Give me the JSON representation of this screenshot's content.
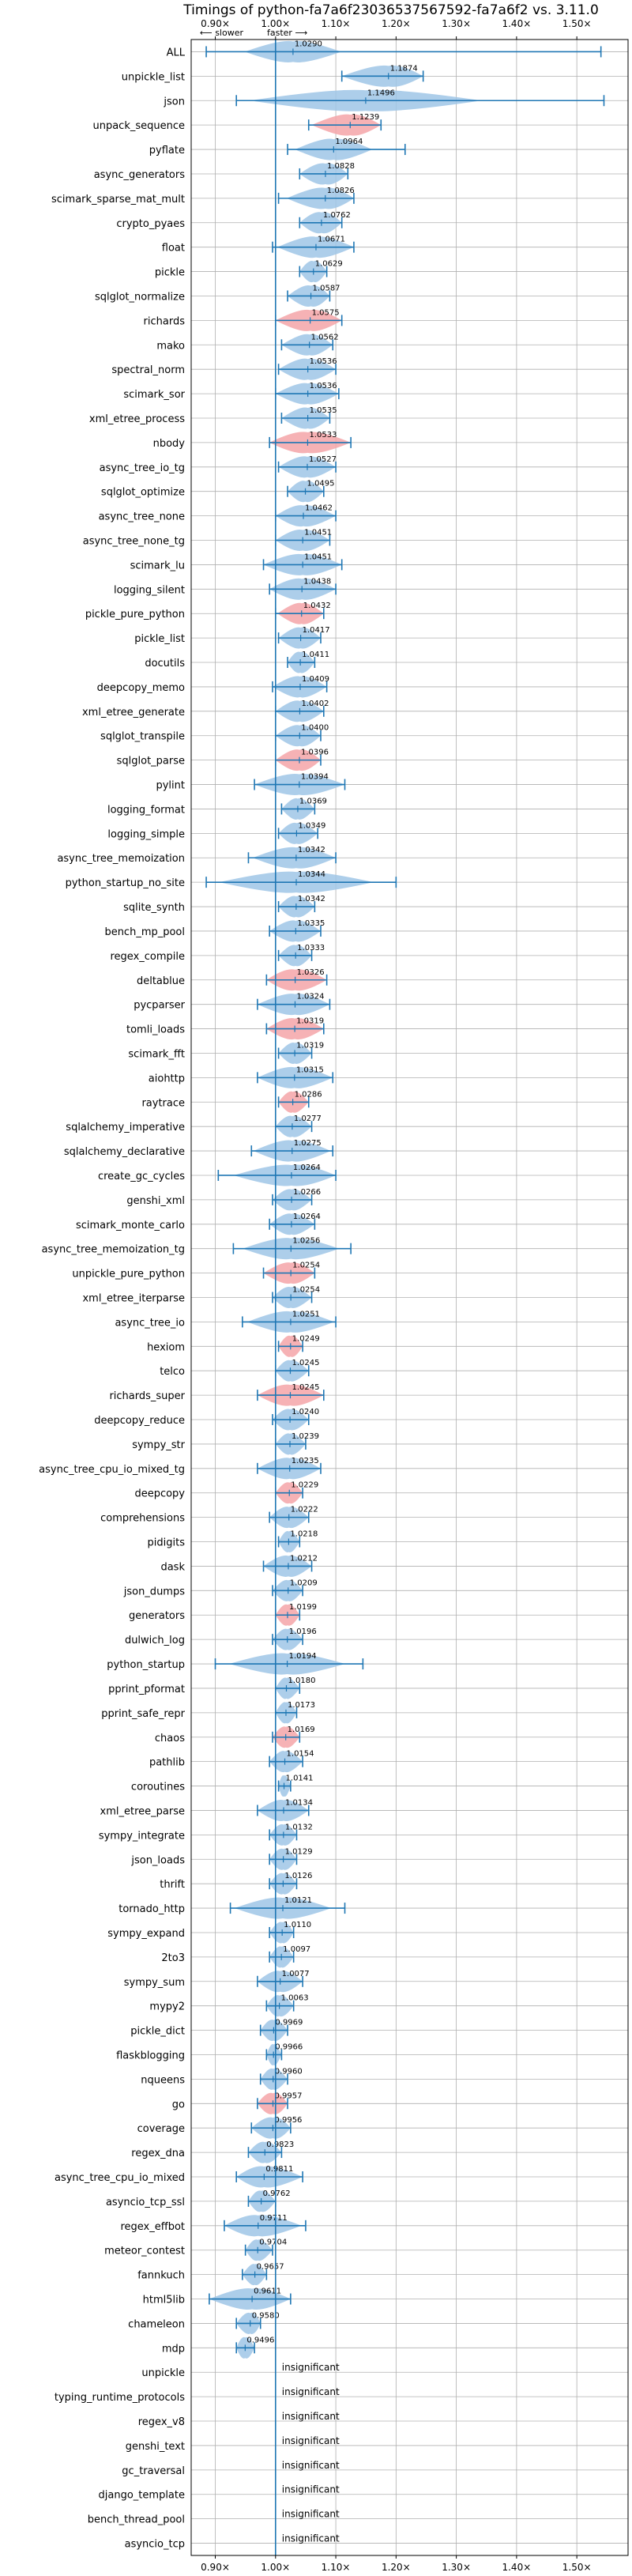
{
  "chart_data": {
    "type": "violin",
    "title": "Timings of python-fa7a6f23036537567592-fa7a6f2 vs. 3.11.0",
    "direction_labels": {
      "slower": "⟵ slower",
      "faster": "faster ⟶"
    },
    "xlim": [
      0.86,
      1.585
    ],
    "xticks": [
      0.9,
      1.0,
      1.1,
      1.2,
      1.3,
      1.4,
      1.5
    ],
    "xtick_labels": [
      "0.90×",
      "1.00×",
      "1.10×",
      "1.20×",
      "1.30×",
      "1.40×",
      "1.50×"
    ],
    "insignificant_label": "insignificant",
    "colors": {
      "neutral": "#9fc6e6",
      "highlight": "#f4a4a8",
      "whisker": "#1f77b4",
      "grid": "#b0b0b0"
    },
    "benchmarks": [
      {
        "name": "ALL",
        "value": 1.029,
        "min": 0.885,
        "max": 1.54,
        "spread": 0.05,
        "highlight": false
      },
      {
        "name": "unpickle_list",
        "value": 1.1874,
        "min": 1.11,
        "max": 1.245,
        "spread": 0.05,
        "highlight": false
      },
      {
        "name": "json",
        "value": 1.1496,
        "min": 0.935,
        "max": 1.545,
        "spread": 0.12,
        "highlight": false
      },
      {
        "name": "unpack_sequence",
        "value": 1.1239,
        "min": 1.055,
        "max": 1.175,
        "spread": 0.04,
        "highlight": true
      },
      {
        "name": "pyflate",
        "value": 1.0964,
        "min": 1.02,
        "max": 1.215,
        "spread": 0.04,
        "highlight": false
      },
      {
        "name": "async_generators",
        "value": 1.0828,
        "min": 1.04,
        "max": 1.12,
        "spread": 0.035,
        "highlight": false
      },
      {
        "name": "scimark_sparse_mat_mult",
        "value": 1.0826,
        "min": 1.005,
        "max": 1.13,
        "spread": 0.04,
        "highlight": false
      },
      {
        "name": "crypto_pyaes",
        "value": 1.0762,
        "min": 1.04,
        "max": 1.11,
        "spread": 0.03,
        "highlight": false
      },
      {
        "name": "float",
        "value": 1.0671,
        "min": 0.995,
        "max": 1.13,
        "spread": 0.04,
        "highlight": false
      },
      {
        "name": "pickle",
        "value": 1.0629,
        "min": 1.04,
        "max": 1.085,
        "spread": 0.02,
        "highlight": false
      },
      {
        "name": "sqlglot_normalize",
        "value": 1.0587,
        "min": 1.02,
        "max": 1.09,
        "spread": 0.03,
        "highlight": false
      },
      {
        "name": "richards",
        "value": 1.0575,
        "min": 1.0,
        "max": 1.11,
        "spread": 0.04,
        "highlight": true
      },
      {
        "name": "mako",
        "value": 1.0562,
        "min": 1.01,
        "max": 1.095,
        "spread": 0.03,
        "highlight": false
      },
      {
        "name": "spectral_norm",
        "value": 1.0536,
        "min": 1.005,
        "max": 1.1,
        "spread": 0.035,
        "highlight": false
      },
      {
        "name": "scimark_sor",
        "value": 1.0536,
        "min": 1.0,
        "max": 1.105,
        "spread": 0.035,
        "highlight": false
      },
      {
        "name": "xml_etree_process",
        "value": 1.0535,
        "min": 1.01,
        "max": 1.09,
        "spread": 0.03,
        "highlight": false
      },
      {
        "name": "nbody",
        "value": 1.0533,
        "min": 0.99,
        "max": 1.125,
        "spread": 0.05,
        "highlight": true
      },
      {
        "name": "async_tree_io_tg",
        "value": 1.0527,
        "min": 1.005,
        "max": 1.1,
        "spread": 0.035,
        "highlight": false
      },
      {
        "name": "sqlglot_optimize",
        "value": 1.0495,
        "min": 1.02,
        "max": 1.08,
        "spread": 0.025,
        "highlight": false
      },
      {
        "name": "async_tree_none",
        "value": 1.0462,
        "min": 1.0,
        "max": 1.1,
        "spread": 0.035,
        "highlight": false
      },
      {
        "name": "async_tree_none_tg",
        "value": 1.0451,
        "min": 1.0,
        "max": 1.09,
        "spread": 0.035,
        "highlight": false
      },
      {
        "name": "scimark_lu",
        "value": 1.0451,
        "min": 0.98,
        "max": 1.11,
        "spread": 0.045,
        "highlight": false
      },
      {
        "name": "logging_silent",
        "value": 1.0438,
        "min": 0.99,
        "max": 1.1,
        "spread": 0.04,
        "highlight": false
      },
      {
        "name": "pickle_pure_python",
        "value": 1.0432,
        "min": 1.0,
        "max": 1.08,
        "spread": 0.025,
        "highlight": true
      },
      {
        "name": "pickle_list",
        "value": 1.0417,
        "min": 1.005,
        "max": 1.075,
        "spread": 0.025,
        "highlight": false
      },
      {
        "name": "docutils",
        "value": 1.0411,
        "min": 1.02,
        "max": 1.065,
        "spread": 0.02,
        "highlight": false
      },
      {
        "name": "deepcopy_memo",
        "value": 1.0409,
        "min": 0.995,
        "max": 1.085,
        "spread": 0.03,
        "highlight": false
      },
      {
        "name": "xml_etree_generate",
        "value": 1.0402,
        "min": 1.0,
        "max": 1.08,
        "spread": 0.03,
        "highlight": false
      },
      {
        "name": "sqlglot_transpile",
        "value": 1.04,
        "min": 1.0,
        "max": 1.075,
        "spread": 0.03,
        "highlight": false
      },
      {
        "name": "sqlglot_parse",
        "value": 1.0396,
        "min": 1.0,
        "max": 1.075,
        "spread": 0.03,
        "highlight": true
      },
      {
        "name": "pylint",
        "value": 1.0394,
        "min": 0.965,
        "max": 1.115,
        "spread": 0.05,
        "highlight": false
      },
      {
        "name": "logging_format",
        "value": 1.0369,
        "min": 1.01,
        "max": 1.065,
        "spread": 0.02,
        "highlight": false
      },
      {
        "name": "logging_simple",
        "value": 1.0349,
        "min": 1.005,
        "max": 1.07,
        "spread": 0.025,
        "highlight": false
      },
      {
        "name": "async_tree_memoization",
        "value": 1.0342,
        "min": 0.955,
        "max": 1.1,
        "spread": 0.045,
        "highlight": false
      },
      {
        "name": "python_startup_no_site",
        "value": 1.0344,
        "min": 0.885,
        "max": 1.2,
        "spread": 0.08,
        "highlight": false
      },
      {
        "name": "sqlite_synth",
        "value": 1.0342,
        "min": 1.005,
        "max": 1.065,
        "spread": 0.025,
        "highlight": false
      },
      {
        "name": "bench_mp_pool",
        "value": 1.0335,
        "min": 0.99,
        "max": 1.075,
        "spread": 0.03,
        "highlight": false
      },
      {
        "name": "regex_compile",
        "value": 1.0333,
        "min": 1.005,
        "max": 1.06,
        "spread": 0.02,
        "highlight": false
      },
      {
        "name": "deltablue",
        "value": 1.0326,
        "min": 0.985,
        "max": 1.085,
        "spread": 0.04,
        "highlight": true
      },
      {
        "name": "pycparser",
        "value": 1.0324,
        "min": 0.97,
        "max": 1.09,
        "spread": 0.04,
        "highlight": false
      },
      {
        "name": "tomli_loads",
        "value": 1.0319,
        "min": 0.985,
        "max": 1.08,
        "spread": 0.035,
        "highlight": true
      },
      {
        "name": "scimark_fft",
        "value": 1.0319,
        "min": 1.005,
        "max": 1.06,
        "spread": 0.02,
        "highlight": false
      },
      {
        "name": "aiohttp",
        "value": 1.0315,
        "min": 0.97,
        "max": 1.095,
        "spread": 0.04,
        "highlight": false
      },
      {
        "name": "raytrace",
        "value": 1.0286,
        "min": 1.005,
        "max": 1.055,
        "spread": 0.02,
        "highlight": true
      },
      {
        "name": "sqlalchemy_imperative",
        "value": 1.0277,
        "min": 1.0,
        "max": 1.06,
        "spread": 0.025,
        "highlight": false
      },
      {
        "name": "sqlalchemy_declarative",
        "value": 1.0275,
        "min": 0.96,
        "max": 1.095,
        "spread": 0.04,
        "highlight": false
      },
      {
        "name": "create_gc_cycles",
        "value": 1.0264,
        "min": 0.905,
        "max": 1.1,
        "spread": 0.06,
        "highlight": false
      },
      {
        "name": "genshi_xml",
        "value": 1.0266,
        "min": 0.995,
        "max": 1.06,
        "spread": 0.025,
        "highlight": false
      },
      {
        "name": "scimark_monte_carlo",
        "value": 1.0264,
        "min": 0.99,
        "max": 1.065,
        "spread": 0.025,
        "highlight": false
      },
      {
        "name": "async_tree_memoization_tg",
        "value": 1.0256,
        "min": 0.93,
        "max": 1.125,
        "spread": 0.05,
        "highlight": false
      },
      {
        "name": "unpickle_pure_python",
        "value": 1.0254,
        "min": 0.98,
        "max": 1.065,
        "spread": 0.03,
        "highlight": true
      },
      {
        "name": "xml_etree_iterparse",
        "value": 1.0254,
        "min": 0.995,
        "max": 1.06,
        "spread": 0.025,
        "highlight": false
      },
      {
        "name": "async_tree_io",
        "value": 1.0251,
        "min": 0.945,
        "max": 1.1,
        "spread": 0.045,
        "highlight": false
      },
      {
        "name": "hexiom",
        "value": 1.0249,
        "min": 1.005,
        "max": 1.045,
        "spread": 0.018,
        "highlight": true
      },
      {
        "name": "telco",
        "value": 1.0245,
        "min": 1.0,
        "max": 1.055,
        "spread": 0.02,
        "highlight": false
      },
      {
        "name": "richards_super",
        "value": 1.0245,
        "min": 0.97,
        "max": 1.08,
        "spread": 0.04,
        "highlight": true
      },
      {
        "name": "deepcopy_reduce",
        "value": 1.024,
        "min": 0.995,
        "max": 1.055,
        "spread": 0.025,
        "highlight": false
      },
      {
        "name": "sympy_str",
        "value": 1.0239,
        "min": 1.0,
        "max": 1.05,
        "spread": 0.02,
        "highlight": false
      },
      {
        "name": "async_tree_cpu_io_mixed_tg",
        "value": 1.0235,
        "min": 0.97,
        "max": 1.075,
        "spread": 0.035,
        "highlight": false
      },
      {
        "name": "deepcopy",
        "value": 1.0229,
        "min": 1.0,
        "max": 1.045,
        "spread": 0.02,
        "highlight": true
      },
      {
        "name": "comprehensions",
        "value": 1.0222,
        "min": 0.99,
        "max": 1.055,
        "spread": 0.025,
        "highlight": false
      },
      {
        "name": "pidigits",
        "value": 1.0218,
        "min": 1.005,
        "max": 1.04,
        "spread": 0.015,
        "highlight": false
      },
      {
        "name": "dask",
        "value": 1.0212,
        "min": 0.98,
        "max": 1.06,
        "spread": 0.03,
        "highlight": false
      },
      {
        "name": "json_dumps",
        "value": 1.0209,
        "min": 0.995,
        "max": 1.045,
        "spread": 0.02,
        "highlight": false
      },
      {
        "name": "generators",
        "value": 1.0199,
        "min": 1.0,
        "max": 1.04,
        "spread": 0.018,
        "highlight": true
      },
      {
        "name": "dulwich_log",
        "value": 1.0196,
        "min": 0.995,
        "max": 1.045,
        "spread": 0.02,
        "highlight": false
      },
      {
        "name": "python_startup",
        "value": 1.0194,
        "min": 0.9,
        "max": 1.145,
        "spread": 0.06,
        "highlight": false
      },
      {
        "name": "pprint_pformat",
        "value": 1.018,
        "min": 1.0,
        "max": 1.04,
        "spread": 0.015,
        "highlight": false
      },
      {
        "name": "pprint_safe_repr",
        "value": 1.0173,
        "min": 1.0,
        "max": 1.035,
        "spread": 0.015,
        "highlight": false
      },
      {
        "name": "chaos",
        "value": 1.0169,
        "min": 0.995,
        "max": 1.04,
        "spread": 0.018,
        "highlight": true
      },
      {
        "name": "pathlib",
        "value": 1.0154,
        "min": 0.99,
        "max": 1.045,
        "spread": 0.02,
        "highlight": false
      },
      {
        "name": "coroutines",
        "value": 1.0141,
        "min": 1.005,
        "max": 1.025,
        "spread": 0.01,
        "highlight": false
      },
      {
        "name": "xml_etree_parse",
        "value": 1.0134,
        "min": 0.97,
        "max": 1.055,
        "spread": 0.03,
        "highlight": false
      },
      {
        "name": "sympy_integrate",
        "value": 1.0132,
        "min": 0.99,
        "max": 1.035,
        "spread": 0.02,
        "highlight": false
      },
      {
        "name": "json_loads",
        "value": 1.0129,
        "min": 0.99,
        "max": 1.035,
        "spread": 0.02,
        "highlight": false
      },
      {
        "name": "thrift",
        "value": 1.0126,
        "min": 0.99,
        "max": 1.035,
        "spread": 0.02,
        "highlight": false
      },
      {
        "name": "tornado_http",
        "value": 1.0121,
        "min": 0.925,
        "max": 1.115,
        "spread": 0.05,
        "highlight": false
      },
      {
        "name": "sympy_expand",
        "value": 1.011,
        "min": 0.99,
        "max": 1.03,
        "spread": 0.018,
        "highlight": false
      },
      {
        "name": "2to3",
        "value": 1.0097,
        "min": 0.99,
        "max": 1.03,
        "spread": 0.015,
        "highlight": false
      },
      {
        "name": "sympy_sum",
        "value": 1.0077,
        "min": 0.97,
        "max": 1.045,
        "spread": 0.03,
        "highlight": false
      },
      {
        "name": "mypy2",
        "value": 1.0063,
        "min": 0.985,
        "max": 1.03,
        "spread": 0.02,
        "highlight": false
      },
      {
        "name": "pickle_dict",
        "value": 0.9969,
        "min": 0.975,
        "max": 1.02,
        "spread": 0.02,
        "highlight": false
      },
      {
        "name": "flaskblogging",
        "value": 0.9966,
        "min": 0.985,
        "max": 1.01,
        "spread": 0.01,
        "highlight": false
      },
      {
        "name": "nqueens",
        "value": 0.996,
        "min": 0.975,
        "max": 1.02,
        "spread": 0.018,
        "highlight": false
      },
      {
        "name": "go",
        "value": 0.9957,
        "min": 0.97,
        "max": 1.02,
        "spread": 0.025,
        "highlight": true
      },
      {
        "name": "coverage",
        "value": 0.9956,
        "min": 0.96,
        "max": 1.025,
        "spread": 0.03,
        "highlight": false
      },
      {
        "name": "regex_dna",
        "value": 0.9823,
        "min": 0.955,
        "max": 1.01,
        "spread": 0.025,
        "highlight": false
      },
      {
        "name": "async_tree_cpu_io_mixed",
        "value": 0.9811,
        "min": 0.935,
        "max": 1.045,
        "spread": 0.04,
        "highlight": false
      },
      {
        "name": "asyncio_tcp_ssl",
        "value": 0.9762,
        "min": 0.955,
        "max": 1.0,
        "spread": 0.02,
        "highlight": false
      },
      {
        "name": "regex_effbot",
        "value": 0.9711,
        "min": 0.915,
        "max": 1.05,
        "spread": 0.045,
        "highlight": false
      },
      {
        "name": "meteor_contest",
        "value": 0.9704,
        "min": 0.95,
        "max": 0.995,
        "spread": 0.018,
        "highlight": false
      },
      {
        "name": "fannkuch",
        "value": 0.9657,
        "min": 0.945,
        "max": 0.985,
        "spread": 0.015,
        "highlight": false
      },
      {
        "name": "html5lib",
        "value": 0.9611,
        "min": 0.89,
        "max": 1.025,
        "spread": 0.045,
        "highlight": false
      },
      {
        "name": "chameleon",
        "value": 0.958,
        "min": 0.935,
        "max": 0.975,
        "spread": 0.02,
        "highlight": false
      },
      {
        "name": "mdp",
        "value": 0.9496,
        "min": 0.935,
        "max": 0.965,
        "spread": 0.015,
        "highlight": false
      },
      {
        "name": "unpickle",
        "value": null,
        "min": null,
        "max": null,
        "spread": 0,
        "highlight": false
      },
      {
        "name": "typing_runtime_protocols",
        "value": null,
        "min": null,
        "max": null,
        "spread": 0,
        "highlight": false
      },
      {
        "name": "regex_v8",
        "value": null,
        "min": null,
        "max": null,
        "spread": 0,
        "highlight": false
      },
      {
        "name": "genshi_text",
        "value": null,
        "min": null,
        "max": null,
        "spread": 0,
        "highlight": false
      },
      {
        "name": "gc_traversal",
        "value": null,
        "min": null,
        "max": null,
        "spread": 0,
        "highlight": false
      },
      {
        "name": "django_template",
        "value": null,
        "min": null,
        "max": null,
        "spread": 0,
        "highlight": false
      },
      {
        "name": "bench_thread_pool",
        "value": null,
        "min": null,
        "max": null,
        "spread": 0,
        "highlight": false
      },
      {
        "name": "asyncio_tcp",
        "value": null,
        "min": null,
        "max": null,
        "spread": 0,
        "highlight": false
      }
    ]
  }
}
